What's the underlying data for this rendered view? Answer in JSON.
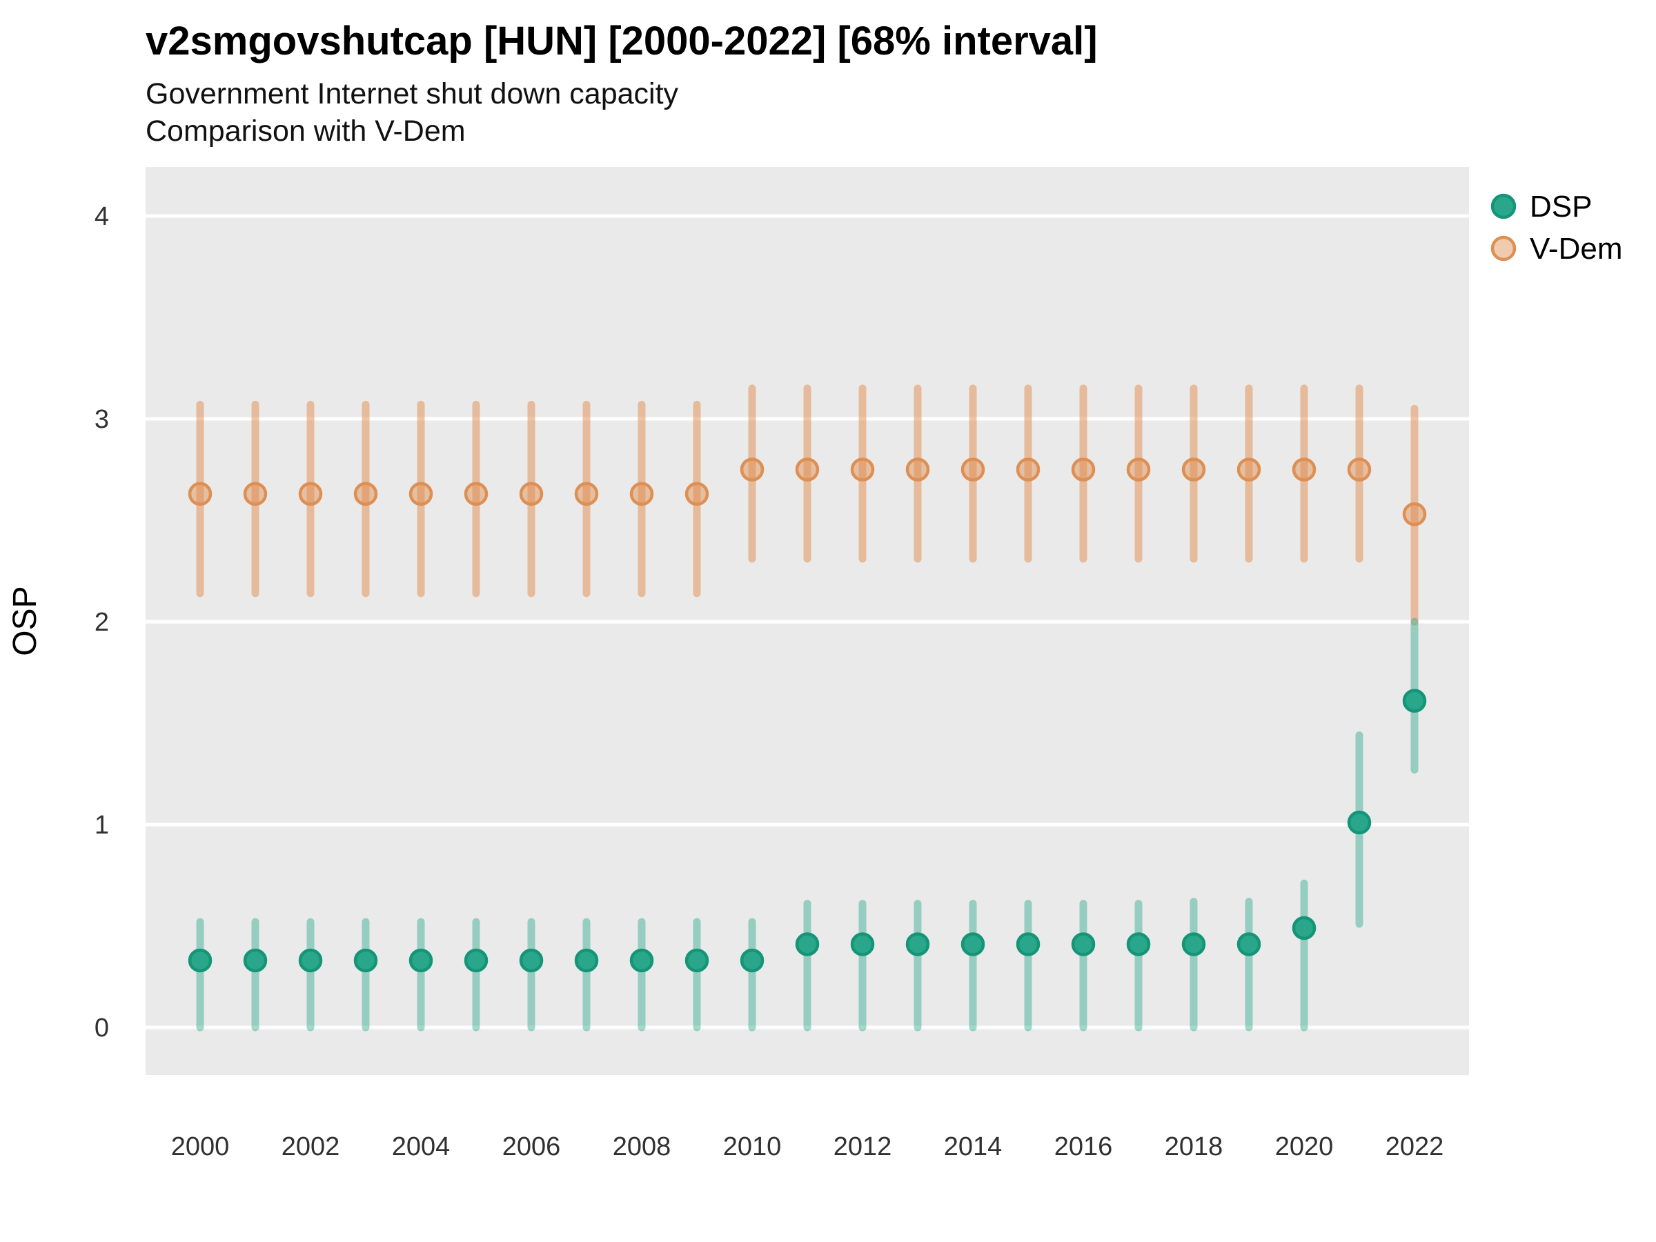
{
  "header": {
    "title": "v2smgovshutcap [HUN] [2000-2022] [68% interval]",
    "subtitle1": "Government Internet shut down capacity",
    "subtitle2": "Comparison with V-Dem"
  },
  "chart_data": {
    "type": "pointrange",
    "title": "v2smgovshutcap [HUN] [2000-2022] [68% interval]",
    "subtitle": [
      "Government Internet shut down capacity",
      "Comparison with V-Dem"
    ],
    "interval": "68%",
    "country": "HUN",
    "xlabel": "",
    "ylabel": "OSP",
    "xlim": [
      1999,
      2023
    ],
    "ylim": [
      -0.25,
      4.24
    ],
    "y_ticks": [
      0,
      1,
      2,
      3,
      4
    ],
    "x_ticks": [
      2000,
      2002,
      2004,
      2006,
      2008,
      2010,
      2012,
      2014,
      2016,
      2018,
      2020,
      2022
    ],
    "grid": "major horizontal only, white lines on grey panel",
    "legend_position": "right",
    "legend": [
      {
        "label": "DSP",
        "color": "#21A486"
      },
      {
        "label": "V-Dem",
        "color": "#DE8F53"
      }
    ],
    "series": [
      {
        "name": "V-Dem",
        "points": [
          {
            "x": 2000,
            "mid": 2.63,
            "lo": 2.14,
            "hi": 3.07
          },
          {
            "x": 2001,
            "mid": 2.63,
            "lo": 2.14,
            "hi": 3.07
          },
          {
            "x": 2002,
            "mid": 2.63,
            "lo": 2.14,
            "hi": 3.07
          },
          {
            "x": 2003,
            "mid": 2.63,
            "lo": 2.14,
            "hi": 3.07
          },
          {
            "x": 2004,
            "mid": 2.63,
            "lo": 2.14,
            "hi": 3.07
          },
          {
            "x": 2005,
            "mid": 2.63,
            "lo": 2.14,
            "hi": 3.07
          },
          {
            "x": 2006,
            "mid": 2.63,
            "lo": 2.14,
            "hi": 3.07
          },
          {
            "x": 2007,
            "mid": 2.63,
            "lo": 2.14,
            "hi": 3.07
          },
          {
            "x": 2008,
            "mid": 2.63,
            "lo": 2.14,
            "hi": 3.07
          },
          {
            "x": 2009,
            "mid": 2.63,
            "lo": 2.14,
            "hi": 3.07
          },
          {
            "x": 2010,
            "mid": 2.75,
            "lo": 2.31,
            "hi": 3.15
          },
          {
            "x": 2011,
            "mid": 2.75,
            "lo": 2.31,
            "hi": 3.15
          },
          {
            "x": 2012,
            "mid": 2.75,
            "lo": 2.31,
            "hi": 3.15
          },
          {
            "x": 2013,
            "mid": 2.75,
            "lo": 2.31,
            "hi": 3.15
          },
          {
            "x": 2014,
            "mid": 2.75,
            "lo": 2.31,
            "hi": 3.15
          },
          {
            "x": 2015,
            "mid": 2.75,
            "lo": 2.31,
            "hi": 3.15
          },
          {
            "x": 2016,
            "mid": 2.75,
            "lo": 2.31,
            "hi": 3.15
          },
          {
            "x": 2017,
            "mid": 2.75,
            "lo": 2.31,
            "hi": 3.15
          },
          {
            "x": 2018,
            "mid": 2.75,
            "lo": 2.31,
            "hi": 3.15
          },
          {
            "x": 2019,
            "mid": 2.75,
            "lo": 2.31,
            "hi": 3.15
          },
          {
            "x": 2020,
            "mid": 2.75,
            "lo": 2.31,
            "hi": 3.15
          },
          {
            "x": 2021,
            "mid": 2.75,
            "lo": 2.31,
            "hi": 3.15
          },
          {
            "x": 2022,
            "mid": 2.53,
            "lo": 2.0,
            "hi": 3.05
          }
        ]
      },
      {
        "name": "DSP",
        "points": [
          {
            "x": 2000,
            "mid": 0.33,
            "lo": 0.0,
            "hi": 0.52
          },
          {
            "x": 2001,
            "mid": 0.33,
            "lo": 0.0,
            "hi": 0.52
          },
          {
            "x": 2002,
            "mid": 0.33,
            "lo": 0.0,
            "hi": 0.52
          },
          {
            "x": 2003,
            "mid": 0.33,
            "lo": 0.0,
            "hi": 0.52
          },
          {
            "x": 2004,
            "mid": 0.33,
            "lo": 0.0,
            "hi": 0.52
          },
          {
            "x": 2005,
            "mid": 0.33,
            "lo": 0.0,
            "hi": 0.52
          },
          {
            "x": 2006,
            "mid": 0.33,
            "lo": 0.0,
            "hi": 0.52
          },
          {
            "x": 2007,
            "mid": 0.33,
            "lo": 0.0,
            "hi": 0.52
          },
          {
            "x": 2008,
            "mid": 0.33,
            "lo": 0.0,
            "hi": 0.52
          },
          {
            "x": 2009,
            "mid": 0.33,
            "lo": 0.0,
            "hi": 0.52
          },
          {
            "x": 2010,
            "mid": 0.33,
            "lo": 0.0,
            "hi": 0.52
          },
          {
            "x": 2011,
            "mid": 0.41,
            "lo": 0.0,
            "hi": 0.61
          },
          {
            "x": 2012,
            "mid": 0.41,
            "lo": 0.0,
            "hi": 0.61
          },
          {
            "x": 2013,
            "mid": 0.41,
            "lo": 0.0,
            "hi": 0.61
          },
          {
            "x": 2014,
            "mid": 0.41,
            "lo": 0.0,
            "hi": 0.61
          },
          {
            "x": 2015,
            "mid": 0.41,
            "lo": 0.0,
            "hi": 0.61
          },
          {
            "x": 2016,
            "mid": 0.41,
            "lo": 0.0,
            "hi": 0.61
          },
          {
            "x": 2017,
            "mid": 0.41,
            "lo": 0.0,
            "hi": 0.61
          },
          {
            "x": 2018,
            "mid": 0.41,
            "lo": 0.0,
            "hi": 0.62
          },
          {
            "x": 2019,
            "mid": 0.41,
            "lo": 0.0,
            "hi": 0.62
          },
          {
            "x": 2020,
            "mid": 0.49,
            "lo": 0.0,
            "hi": 0.71
          },
          {
            "x": 2021,
            "mid": 1.01,
            "lo": 0.51,
            "hi": 1.44
          },
          {
            "x": 2022,
            "mid": 1.61,
            "lo": 1.27,
            "hi": 2.0
          }
        ]
      }
    ],
    "style": {
      "panel_bg": "#EAEAEA",
      "grid_color": "#FFFFFF",
      "axis_text_color": "#303030",
      "dsp_point_fill": "#2AA78A",
      "dsp_point_stroke": "#159578",
      "dsp_line": "rgba(32,164,134,0.42)",
      "vdem_point_fill": "rgba(224,140,76,0.45)",
      "vdem_point_stroke": "#DE8F53",
      "vdem_line": "rgba(224,140,76,0.5)"
    }
  }
}
